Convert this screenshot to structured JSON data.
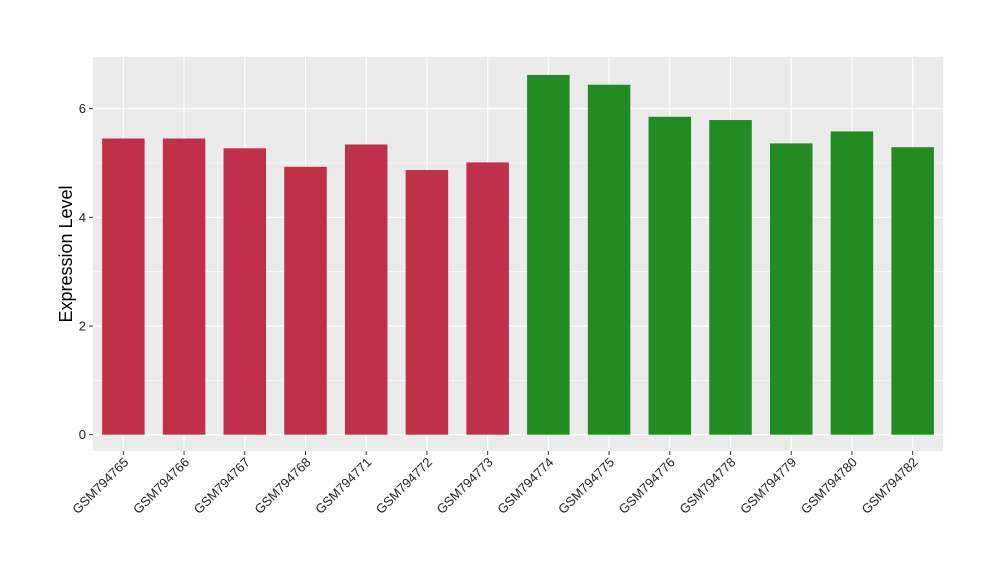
{
  "chart_data": {
    "type": "bar",
    "title": "",
    "xlabel": "",
    "ylabel": "Expression Level",
    "ylim": [
      -0.3,
      6.95
    ],
    "y_ticks": [
      0,
      2,
      4,
      6
    ],
    "grid": true,
    "legend": "none",
    "categories": [
      "GSM794765",
      "GSM794766",
      "GSM794767",
      "GSM794768",
      "GSM794771",
      "GSM794772",
      "GSM794773",
      "GSM794774",
      "GSM794775",
      "GSM794776",
      "GSM794778",
      "GSM794779",
      "GSM794780",
      "GSM794782"
    ],
    "values": [
      5.45,
      5.45,
      5.27,
      4.93,
      5.34,
      4.87,
      5.01,
      6.62,
      6.44,
      5.85,
      5.79,
      5.36,
      5.58,
      5.29
    ],
    "bar_colors": [
      "#C0304A",
      "#C0304A",
      "#C0304A",
      "#C0304A",
      "#C0304A",
      "#C0304A",
      "#C0304A",
      "#228B22",
      "#228B22",
      "#228B22",
      "#228B22",
      "#228B22",
      "#228B22",
      "#228B22"
    ],
    "panel_background": "#EBEBEB",
    "grid_color": "#FFFFFF"
  }
}
